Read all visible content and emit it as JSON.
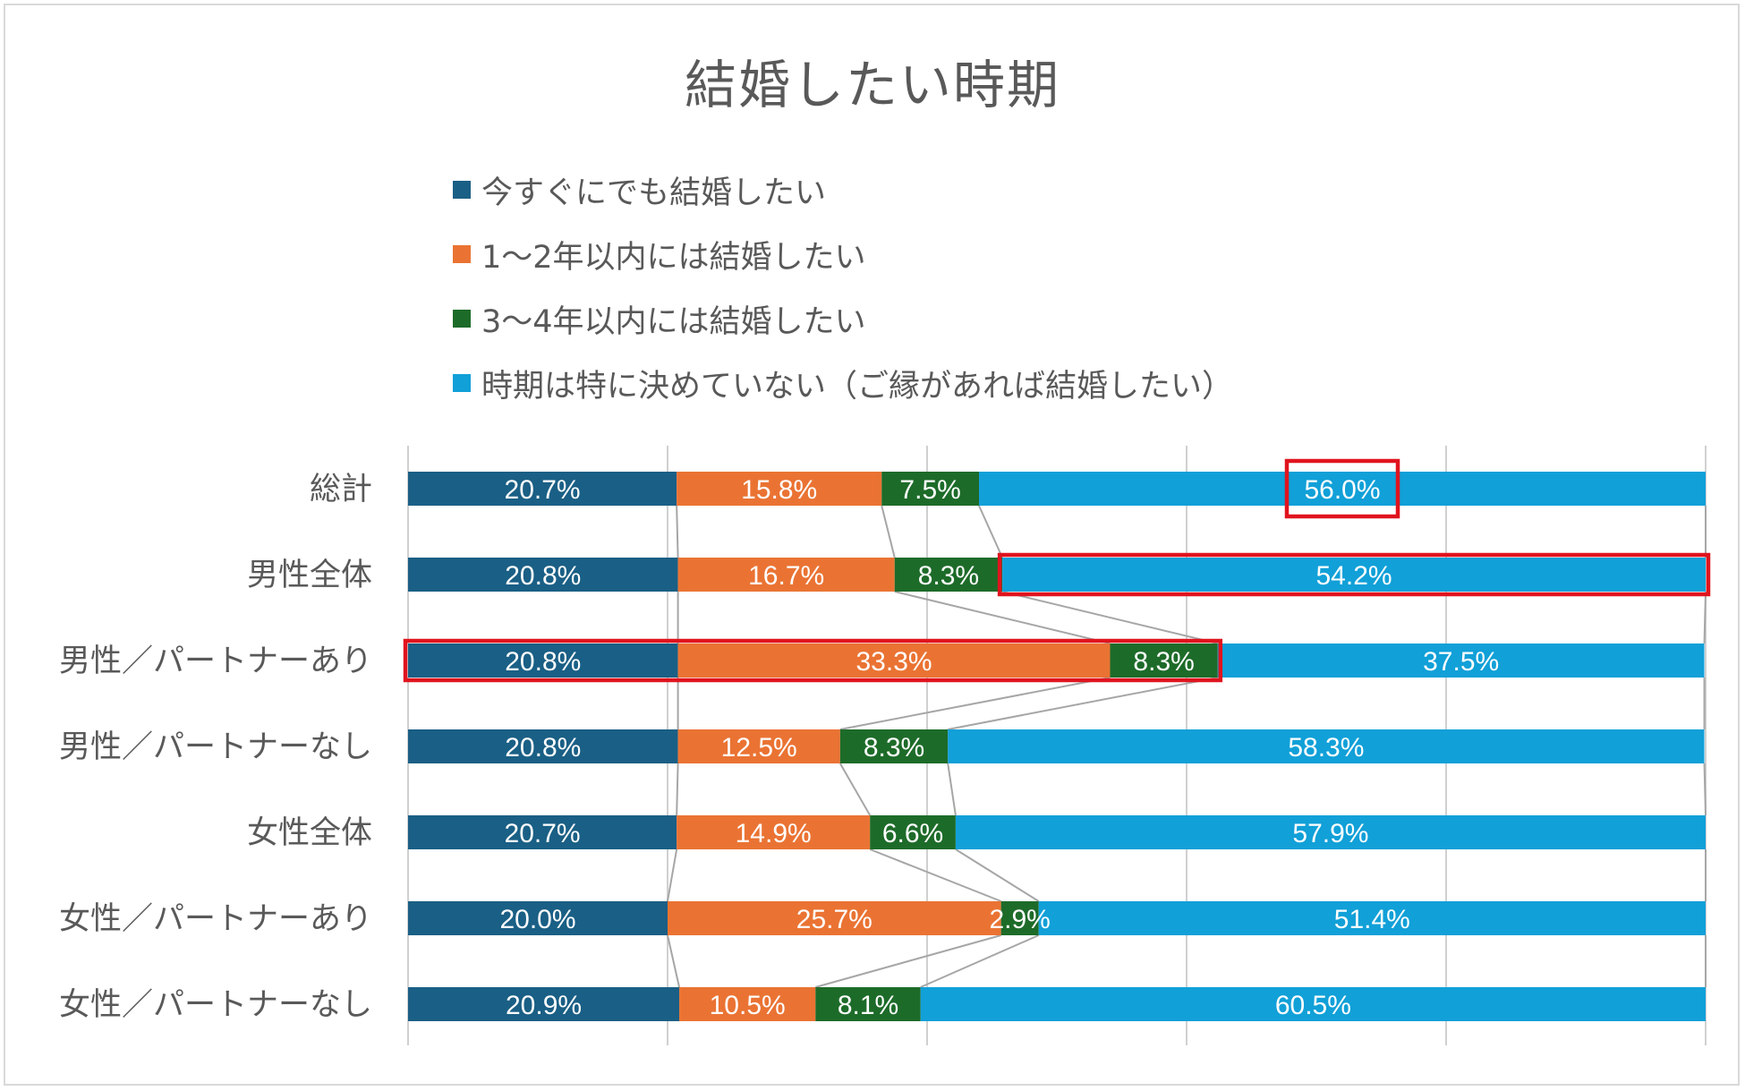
{
  "chart_data": {
    "type": "bar",
    "stacked": "100%",
    "orientation": "horizontal",
    "title": "結婚したい時期",
    "categories": [
      "総計",
      "男性全体",
      "男性／パートナーあり",
      "男性／パートナーなし",
      "女性全体",
      "女性／パートナーあり",
      "女性／パートナーなし"
    ],
    "series": [
      {
        "name": "今すぐにでも結婚したい",
        "color": "#1a5f85",
        "values": [
          20.7,
          20.8,
          20.8,
          20.8,
          20.7,
          20.0,
          20.9
        ],
        "labels": [
          "20.7%",
          "20.8%",
          "20.8%",
          "20.8%",
          "20.7%",
          "20.0%",
          "20.9%"
        ]
      },
      {
        "name": "1〜2年以内には結婚したい",
        "color": "#ea7333",
        "values": [
          15.8,
          16.7,
          33.3,
          12.5,
          14.9,
          25.7,
          10.5
        ],
        "labels": [
          "15.8%",
          "16.7%",
          "33.3%",
          "12.5%",
          "14.9%",
          "25.7%",
          "10.5%"
        ]
      },
      {
        "name": "3〜4年以内には結婚したい",
        "color": "#1d6b29",
        "values": [
          7.5,
          8.3,
          8.3,
          8.3,
          6.6,
          2.9,
          8.1
        ],
        "labels": [
          "7.5%",
          "8.3%",
          "8.3%",
          "8.3%",
          "6.6%",
          "2.9%",
          "8.1%"
        ]
      },
      {
        "name": "時期は特に決めていない（ご縁があれば結婚したい）",
        "color": "#11a0d8",
        "values": [
          56.0,
          54.2,
          37.5,
          58.3,
          57.9,
          51.4,
          60.5
        ],
        "labels": [
          "56.0%",
          "54.2%",
          "37.5%",
          "58.3%",
          "57.9%",
          "51.4%",
          "60.5%"
        ]
      }
    ],
    "xlim": [
      0,
      100
    ],
    "gridlines": true,
    "series_lines": true,
    "legend_position": "top",
    "highlight_color": "#e0141e",
    "highlights": [
      {
        "category": "総計",
        "target": "label",
        "series": 3
      },
      {
        "category": "男性全体",
        "target": "segments",
        "series": [
          3
        ]
      },
      {
        "category": "男性／パートナーあり",
        "target": "segments",
        "series": [
          0,
          1,
          2
        ]
      }
    ]
  }
}
